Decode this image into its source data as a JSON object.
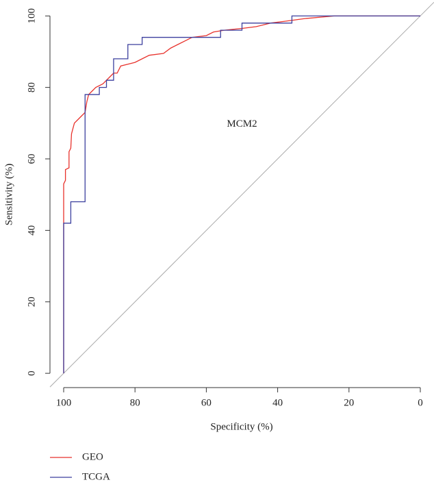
{
  "chart_data": {
    "type": "line",
    "x_label": "Specificity (%)",
    "y_label": "Sensitivity (%)",
    "annotation": {
      "text": "MCM2",
      "x": 50,
      "y": 69.7
    },
    "reference_line": true,
    "xlim": [
      103.84,
      -3.84
    ],
    "xticks": [
      100,
      80,
      60,
      40,
      20,
      0
    ],
    "ylim": [
      -4,
      103.5
    ],
    "yticks": [
      0,
      20,
      40,
      60,
      80,
      100
    ],
    "legend": "bottom-left",
    "series": [
      {
        "name": "GEO",
        "color": "#e8322c",
        "x": [
          100,
          100,
          99.5,
          99.5,
          98.5,
          98.5,
          98,
          97.8,
          97,
          96,
          95,
          94,
          93.5,
          93,
          92,
          91,
          89,
          88,
          87,
          86,
          85,
          84,
          82,
          80,
          78,
          76,
          72,
          70,
          68,
          66,
          64,
          60,
          58,
          55,
          50,
          46,
          42,
          38,
          32,
          24,
          0
        ],
        "values": [
          0,
          53,
          54,
          57,
          57.5,
          62,
          63,
          67,
          70,
          71,
          72,
          73,
          76,
          78,
          79,
          80,
          81,
          82,
          83,
          84,
          84,
          86,
          86.5,
          87,
          88,
          89,
          89.5,
          91,
          92,
          93,
          94,
          94.5,
          95.5,
          96,
          96.5,
          97,
          98,
          98.5,
          99.3,
          100,
          100
        ]
      },
      {
        "name": "TCGA",
        "color": "#3b3f9e",
        "x": [
          100,
          100,
          98,
          98,
          94,
          94,
          90,
          90,
          88,
          88,
          86,
          86,
          82,
          82,
          78,
          78,
          56,
          56,
          50,
          50,
          36,
          36,
          0
        ],
        "values": [
          0,
          42,
          42,
          48,
          48,
          78,
          78,
          80,
          80,
          82,
          82,
          88,
          88,
          92,
          92,
          94,
          94,
          96,
          96,
          98,
          98,
          100,
          100
        ]
      }
    ]
  }
}
